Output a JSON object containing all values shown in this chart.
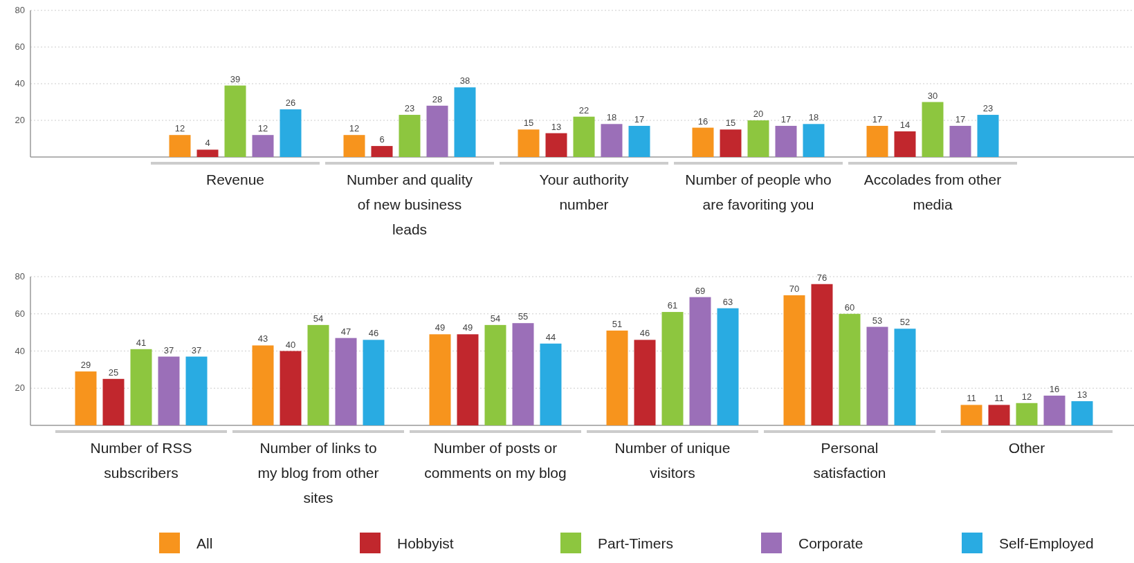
{
  "chart_data": [
    {
      "type": "bar",
      "categories": [
        "Revenue",
        "Number and quality of new business leads",
        "Your authority number",
        "Number of people who are favoriting you",
        "Accolades from other media"
      ],
      "series": [
        {
          "color": "#f7941d",
          "values": [
            12,
            12,
            15,
            16,
            17
          ]
        },
        {
          "color": "#c1272d",
          "values": [
            4,
            6,
            13,
            15,
            14
          ]
        },
        {
          "color": "#8dc63f",
          "values": [
            39,
            23,
            22,
            20,
            30
          ]
        },
        {
          "color": "#9b6fb8",
          "values": [
            12,
            28,
            18,
            17,
            17
          ]
        },
        {
          "color": "#29abe2",
          "values": [
            26,
            38,
            17,
            18,
            23
          ]
        }
      ],
      "ylim": [
        0,
        80
      ],
      "yticks": [
        20,
        40,
        60,
        80
      ],
      "grid": "y",
      "data_labels": true,
      "legend": false
    },
    {
      "type": "bar",
      "categories": [
        "Number of RSS subscribers",
        "Number of links to my blog from other sites",
        "Number of posts or comments on my blog",
        "Number of unique visitors",
        "Personal satisfaction",
        "Other"
      ],
      "series": [
        {
          "name": "All",
          "color": "#f7941d",
          "values": [
            29,
            43,
            49,
            51,
            70,
            11
          ]
        },
        {
          "name": "Hobbyist",
          "color": "#c1272d",
          "values": [
            25,
            40,
            49,
            46,
            76,
            11
          ]
        },
        {
          "name": "Part-Timers",
          "color": "#8dc63f",
          "values": [
            41,
            54,
            54,
            61,
            60,
            12
          ]
        },
        {
          "name": "Corporate",
          "color": "#9b6fb8",
          "values": [
            37,
            47,
            55,
            69,
            53,
            16
          ]
        },
        {
          "name": "Self-Employed",
          "color": "#29abe2",
          "values": [
            37,
            46,
            44,
            63,
            52,
            13
          ]
        }
      ],
      "ylim": [
        0,
        80
      ],
      "yticks": [
        20,
        40,
        60,
        80
      ],
      "grid": "y",
      "data_labels": true,
      "legend": "bottom"
    }
  ]
}
